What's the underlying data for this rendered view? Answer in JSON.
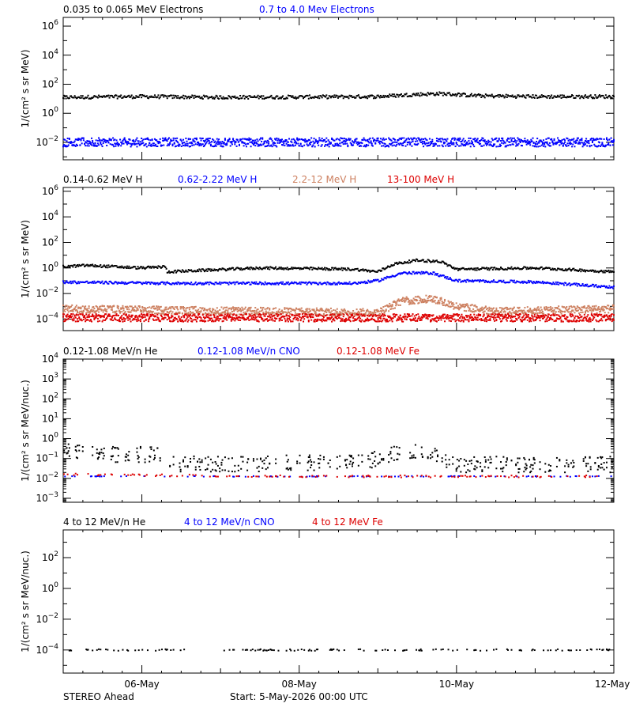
{
  "chart_data": [
    {
      "type": "scatter",
      "ylabel": "1/(cm² s sr MeV)",
      "yscale": "log",
      "ylim_exp": [
        -3.2,
        6.6
      ],
      "ytick_exps": [
        -2,
        0,
        2,
        4,
        6
      ],
      "legend": [
        {
          "text": "0.035 to 0.065 MeV Electrons",
          "color": "#000000"
        },
        {
          "text": "0.7 to 4.0 Mev Electrons",
          "color": "#0000ff"
        }
      ],
      "series": [
        {
          "color": "#000000",
          "keys": [
            [
              0,
              1.1
            ],
            [
              1,
              1.15
            ],
            [
              2,
              1.1
            ],
            [
              3,
              1.12
            ],
            [
              4,
              1.15
            ],
            [
              4.5,
              1.3
            ],
            [
              4.8,
              1.35
            ],
            [
              5.3,
              1.2
            ],
            [
              6,
              1.15
            ],
            [
              7,
              1.15
            ]
          ],
          "spread": 0.12
        },
        {
          "color": "#0000ff",
          "keys": [
            [
              0,
              -2.0
            ],
            [
              7,
              -2.0
            ]
          ],
          "spread": 0.3
        }
      ]
    },
    {
      "type": "scatter",
      "ylabel": "1/(cm² s sr MeV)",
      "yscale": "log",
      "ylim_exp": [
        -4.9,
        6.3
      ],
      "ytick_exps": [
        -4,
        -2,
        0,
        2,
        4,
        6
      ],
      "legend": [
        {
          "text": "0.14-0.62 MeV H",
          "color": "#000000"
        },
        {
          "text": "0.62-2.22 MeV H",
          "color": "#0000ff"
        },
        {
          "text": "2.2-12 MeV H",
          "color": "#cd8060"
        },
        {
          "text": "13-100 MeV H",
          "color": "#dd0000"
        }
      ],
      "series": [
        {
          "color": "#000000",
          "keys": [
            [
              0,
              0.1
            ],
            [
              0.3,
              0.2
            ],
            [
              1.0,
              0
            ],
            [
              1.3,
              0.1
            ],
            [
              1.32,
              -0.3
            ],
            [
              2.5,
              0
            ],
            [
              3.7,
              -0.1
            ],
            [
              4.0,
              -0.3
            ],
            [
              4.2,
              0.3
            ],
            [
              4.5,
              0.6
            ],
            [
              4.8,
              0.5
            ],
            [
              5.0,
              -0.1
            ],
            [
              6.0,
              0
            ],
            [
              7,
              -0.3
            ]
          ],
          "spread": 0.1
        },
        {
          "color": "#0000ff",
          "keys": [
            [
              0,
              -1.1
            ],
            [
              1.3,
              -1.2
            ],
            [
              3.7,
              -1.2
            ],
            [
              4.0,
              -1.0
            ],
            [
              4.3,
              -0.4
            ],
            [
              4.7,
              -0.4
            ],
            [
              5.0,
              -1.0
            ],
            [
              6.0,
              -1.1
            ],
            [
              7,
              -1.5
            ]
          ],
          "spread": 0.1
        },
        {
          "color": "#cd8060",
          "keys": [
            [
              0,
              -3.2
            ],
            [
              4.0,
              -3.5
            ],
            [
              4.3,
              -2.6
            ],
            [
              4.7,
              -2.4
            ],
            [
              5.0,
              -3.0
            ],
            [
              5.5,
              -3.4
            ],
            [
              7,
              -3.2
            ]
          ],
          "spread": 0.3
        },
        {
          "color": "#dd0000",
          "keys": [
            [
              0,
              -3.9
            ],
            [
              7,
              -3.9
            ]
          ],
          "spread": 0.3
        }
      ]
    },
    {
      "type": "scatter",
      "ylabel": "1/(cm² s sr MeV/nuc.)",
      "yscale": "log",
      "ylim_exp": [
        -3.2,
        4.0
      ],
      "ytick_exps": [
        -3,
        -2,
        -1,
        0,
        1,
        2,
        3,
        4
      ],
      "legend": [
        {
          "text": "0.12-1.08 MeV/n He",
          "color": "#000000"
        },
        {
          "text": "0.12-1.08 MeV/n CNO",
          "color": "#0000ff"
        },
        {
          "text": "0.12-1.08 MeV Fe",
          "color": "#dd0000"
        }
      ],
      "series": [
        {
          "color": "#000000",
          "keys": [
            [
              0,
              -0.6
            ],
            [
              0.5,
              -0.8
            ],
            [
              1.2,
              -0.8
            ],
            [
              1.4,
              -1.3
            ],
            [
              3.8,
              -1.2
            ],
            [
              4.3,
              -0.7
            ],
            [
              4.7,
              -0.7
            ],
            [
              5.0,
              -1.3
            ],
            [
              7,
              -1.3
            ]
          ],
          "spread": 0.4,
          "density": 0.35
        },
        {
          "color": "#0000ff",
          "keys": [
            [
              0,
              -1.9
            ],
            [
              7,
              -1.9
            ]
          ],
          "spread": 0.02,
          "density": 0.15
        },
        {
          "color": "#dd0000",
          "keys": [
            [
              0,
              -1.8
            ],
            [
              3.0,
              -1.9
            ],
            [
              7,
              -1.9
            ]
          ],
          "spread": 0.05,
          "density": 0.2
        }
      ]
    },
    {
      "type": "scatter",
      "ylabel": "1/(cm² s sr MeV/nuc.)",
      "yscale": "log",
      "ylim_exp": [
        -5.5,
        3.8
      ],
      "ytick_exps": [
        -4,
        -2,
        0,
        2
      ],
      "legend": [
        {
          "text": "4 to 12 MeV/n He",
          "color": "#000000"
        },
        {
          "text": "4 to 12 MeV/n CNO",
          "color": "#0000ff"
        },
        {
          "text": "4 to 12 MeV Fe",
          "color": "#dd0000"
        }
      ],
      "series": [
        {
          "color": "#000000",
          "keys": [
            [
              0,
              -4.0
            ],
            [
              7,
              -4.0
            ]
          ],
          "spread": 0.05,
          "density": 0.22
        }
      ]
    }
  ],
  "x_axis": {
    "range_days": [
      0,
      7
    ],
    "ticks": [
      {
        "day": 1,
        "label": "06-May"
      },
      {
        "day": 3,
        "label": "08-May"
      },
      {
        "day": 5,
        "label": "10-May"
      },
      {
        "day": 7,
        "label": "12-May"
      }
    ]
  },
  "footer": {
    "left": "STEREO Ahead",
    "start": "Start:  5-May-2026 00:00 UTC"
  }
}
